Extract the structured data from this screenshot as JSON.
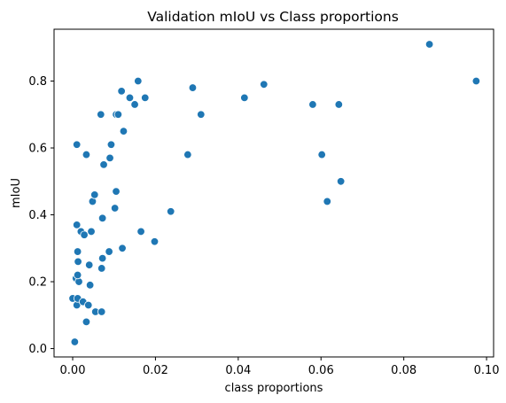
{
  "chart_data": {
    "type": "scatter",
    "title": "Validation mIoU vs Class proportions",
    "xlabel": "class proportions",
    "ylabel": "mIoU",
    "xlim": [
      -0.0045,
      0.1017
    ],
    "ylim": [
      -0.025,
      0.955
    ],
    "xticks": [
      0.0,
      0.02,
      0.04,
      0.06,
      0.08,
      0.1
    ],
    "xtick_labels": [
      "0.00",
      "0.02",
      "0.04",
      "0.06",
      "0.08",
      "0.10"
    ],
    "yticks": [
      0.0,
      0.2,
      0.4,
      0.6,
      0.8
    ],
    "ytick_labels": [
      "0.0",
      "0.2",
      "0.4",
      "0.6",
      "0.8"
    ],
    "grid": false,
    "marker_color": "#1f77b4",
    "series": [
      {
        "points": [
          [
            0.0005,
            0.02
          ],
          [
            0.0,
            0.15
          ],
          [
            0.0008,
            0.21
          ],
          [
            0.001,
            0.13
          ],
          [
            0.0012,
            0.15
          ],
          [
            0.0015,
            0.2
          ],
          [
            0.0012,
            0.22
          ],
          [
            0.0013,
            0.26
          ],
          [
            0.0012,
            0.29
          ],
          [
            0.001,
            0.37
          ],
          [
            0.001,
            0.61
          ],
          [
            0.002,
            0.35
          ],
          [
            0.0025,
            0.14
          ],
          [
            0.0028,
            0.34
          ],
          [
            0.0033,
            0.08
          ],
          [
            0.0033,
            0.58
          ],
          [
            0.0038,
            0.13
          ],
          [
            0.004,
            0.25
          ],
          [
            0.0042,
            0.19
          ],
          [
            0.0045,
            0.35
          ],
          [
            0.0048,
            0.44
          ],
          [
            0.0053,
            0.46
          ],
          [
            0.0055,
            0.11
          ],
          [
            0.007,
            0.11
          ],
          [
            0.007,
            0.24
          ],
          [
            0.0072,
            0.27
          ],
          [
            0.0072,
            0.39
          ],
          [
            0.0068,
            0.7
          ],
          [
            0.0075,
            0.55
          ],
          [
            0.0088,
            0.29
          ],
          [
            0.009,
            0.57
          ],
          [
            0.0093,
            0.61
          ],
          [
            0.0102,
            0.42
          ],
          [
            0.0105,
            0.47
          ],
          [
            0.0105,
            0.7
          ],
          [
            0.011,
            0.7
          ],
          [
            0.0118,
            0.77
          ],
          [
            0.012,
            0.3
          ],
          [
            0.0123,
            0.65
          ],
          [
            0.0138,
            0.75
          ],
          [
            0.015,
            0.73
          ],
          [
            0.0158,
            0.8
          ],
          [
            0.0165,
            0.35
          ],
          [
            0.0175,
            0.75
          ],
          [
            0.0198,
            0.32
          ],
          [
            0.0237,
            0.41
          ],
          [
            0.0278,
            0.58
          ],
          [
            0.029,
            0.78
          ],
          [
            0.031,
            0.7
          ],
          [
            0.0415,
            0.75
          ],
          [
            0.0462,
            0.79
          ],
          [
            0.058,
            0.73
          ],
          [
            0.0602,
            0.58
          ],
          [
            0.0615,
            0.44
          ],
          [
            0.0643,
            0.73
          ],
          [
            0.0648,
            0.5
          ],
          [
            0.0862,
            0.91
          ],
          [
            0.0975,
            0.8
          ]
        ]
      }
    ]
  }
}
